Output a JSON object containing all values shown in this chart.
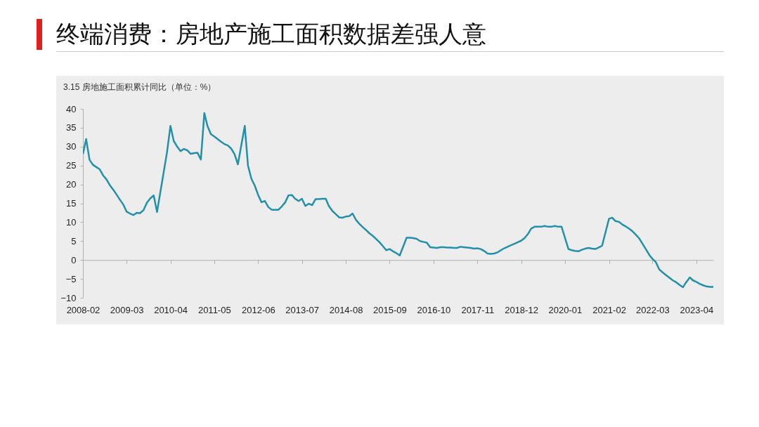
{
  "chart_data": {
    "type": "line",
    "title": "终端消费：房地产施工面积数据差强人意",
    "subtitle": "3.15 房地施工面积累计同比（单位：%）",
    "series": [
      {
        "color": "#2190a8",
        "x": [
          "2008-02",
          "2008-03",
          "2008-04",
          "2008-05",
          "2008-06",
          "2008-07",
          "2008-08",
          "2008-09",
          "2008-10",
          "2008-11",
          "2008-12",
          "2009-01",
          "2009-02",
          "2009-03",
          "2009-04",
          "2009-05",
          "2009-06",
          "2009-07",
          "2009-08",
          "2009-09",
          "2009-10",
          "2009-11",
          "2009-12",
          "2010-03",
          "2010-04",
          "2010-05",
          "2010-06",
          "2010-07",
          "2010-08",
          "2010-09",
          "2010-10",
          "2010-11",
          "2010-12",
          "2011-01",
          "2011-02",
          "2011-03",
          "2011-04",
          "2011-05",
          "2011-06",
          "2011-07",
          "2011-08",
          "2011-09",
          "2011-10",
          "2011-11",
          "2011-12",
          "2012-02",
          "2012-03",
          "2012-04",
          "2012-05",
          "2012-06",
          "2012-07",
          "2012-08",
          "2012-09",
          "2012-10",
          "2012-11",
          "2012-12",
          "2013-01",
          "2013-02",
          "2013-03",
          "2013-04",
          "2013-05",
          "2013-06",
          "2013-07",
          "2013-08",
          "2013-09",
          "2013-10",
          "2013-11",
          "2013-12",
          "2014-01",
          "2014-02",
          "2014-03",
          "2014-04",
          "2014-05",
          "2014-06",
          "2014-07",
          "2014-08",
          "2014-09",
          "2014-10",
          "2014-11",
          "2014-12",
          "2015-01",
          "2015-02",
          "2015-03",
          "2015-04",
          "2015-05",
          "2015-06",
          "2015-07",
          "2015-08",
          "2015-09",
          "2015-10",
          "2015-11",
          "2015-12",
          "2016-02",
          "2016-03",
          "2016-04",
          "2016-05",
          "2016-06",
          "2016-07",
          "2016-08",
          "2016-09",
          "2016-10",
          "2016-11",
          "2016-12",
          "2017-01",
          "2017-02",
          "2017-03",
          "2017-04",
          "2017-05",
          "2017-06",
          "2017-07",
          "2017-08",
          "2017-09",
          "2017-10",
          "2017-11",
          "2017-12",
          "2018-01",
          "2018-02",
          "2018-03",
          "2018-04",
          "2018-05",
          "2018-06",
          "2018-07",
          "2018-08",
          "2018-09",
          "2018-10",
          "2018-11",
          "2018-12",
          "2019-01",
          "2019-02",
          "2019-03",
          "2019-04",
          "2019-05",
          "2019-06",
          "2019-07",
          "2019-08",
          "2019-09",
          "2019-10",
          "2019-11",
          "2019-12",
          "2020-02",
          "2020-03",
          "2020-04",
          "2020-05",
          "2020-06",
          "2020-07",
          "2020-08",
          "2020-09",
          "2020-10",
          "2020-11",
          "2020-12",
          "2021-02",
          "2021-03",
          "2021-04",
          "2021-05",
          "2021-06",
          "2021-07",
          "2021-08",
          "2021-09",
          "2021-10",
          "2021-11",
          "2021-12",
          "2022-01",
          "2022-02",
          "2022-03",
          "2022-04",
          "2022-05",
          "2022-06",
          "2022-07",
          "2022-08",
          "2022-09",
          "2022-10",
          "2022-11",
          "2022-12",
          "2023-01",
          "2023-02",
          "2023-03",
          "2023-04",
          "2023-05",
          "2023-06",
          "2023-07",
          "2023-08",
          "2023-09"
        ],
        "values": [
          28,
          32,
          26.5,
          25.2,
          24.6,
          24,
          22.4,
          21.3,
          19.8,
          18.6,
          17.3,
          15.9,
          14.6,
          12.8,
          12.3,
          11.9,
          12.5,
          12.4,
          13.2,
          15.2,
          16.3,
          17.1,
          12.7,
          28.5,
          35.5,
          31.5,
          30,
          28.8,
          29.4,
          29,
          28.1,
          28.3,
          28.4,
          26.6,
          38.9,
          35.5,
          33.3,
          32.7,
          32,
          31.3,
          30.7,
          30.3,
          29.5,
          28,
          25.3,
          35.5,
          25,
          21.5,
          19.7,
          17.2,
          15.3,
          15.6,
          14,
          13.3,
          13.3,
          13.3,
          14.2,
          15.3,
          17.1,
          17.2,
          16.2,
          15.6,
          16.2,
          14.3,
          14.9,
          14.5,
          16.1,
          16.1,
          16.2,
          16.2,
          14.3,
          13,
          12.2,
          11.3,
          11.2,
          11.5,
          11.6,
          12.3,
          10.6,
          9.6,
          8.7,
          7.9,
          7.1,
          6.4,
          5.6,
          4.7,
          3.7,
          2.6,
          2.9,
          2.3,
          1.8,
          1.2,
          5.9,
          5.9,
          5.8,
          5.6,
          5,
          4.8,
          4.6,
          3.4,
          3.3,
          3.2,
          3.4,
          3.4,
          3.3,
          3.3,
          3.2,
          3.2,
          3.5,
          3.4,
          3.3,
          3.2,
          3,
          3.1,
          2.9,
          2.4,
          1.7,
          1.6,
          1.7,
          2,
          2.6,
          3.1,
          3.5,
          3.9,
          4.3,
          4.7,
          5.1,
          5.8,
          6.9,
          8.3,
          8.8,
          8.8,
          8.8,
          9,
          8.8,
          8.8,
          9,
          8.8,
          8.8,
          2.9,
          2.6,
          2.4,
          2.3,
          2.7,
          3,
          3.2,
          3,
          2.9,
          3.3,
          3.8,
          10.9,
          11.2,
          10.3,
          10.1,
          9.4,
          8.9,
          8.3,
          7.6,
          6.7,
          5.7,
          4.3,
          2.8,
          1.3,
          0.3,
          -0.6,
          -2.5,
          -3.3,
          -4,
          -4.7,
          -5.4,
          -5.9,
          -6.6,
          -7.2,
          -5.8,
          -4.6,
          -5.4,
          -5.8,
          -6.3,
          -6.7,
          -7,
          -7.1,
          -7.1
        ]
      }
    ],
    "xlim": [
      "2008-02",
      "2023-09"
    ],
    "xticks": [
      "2008-02",
      "2009-03",
      "2010-04",
      "2011-05",
      "2012-06",
      "2013-07",
      "2014-08",
      "2015-09",
      "2016-10",
      "2017-11",
      "2018-12",
      "2020-01",
      "2021-02",
      "2022-03",
      "2023-04"
    ],
    "ylim": [
      -10,
      40
    ],
    "yticks": [
      -10,
      -5,
      0,
      5,
      10,
      15,
      20,
      25,
      30,
      35,
      40
    ]
  }
}
